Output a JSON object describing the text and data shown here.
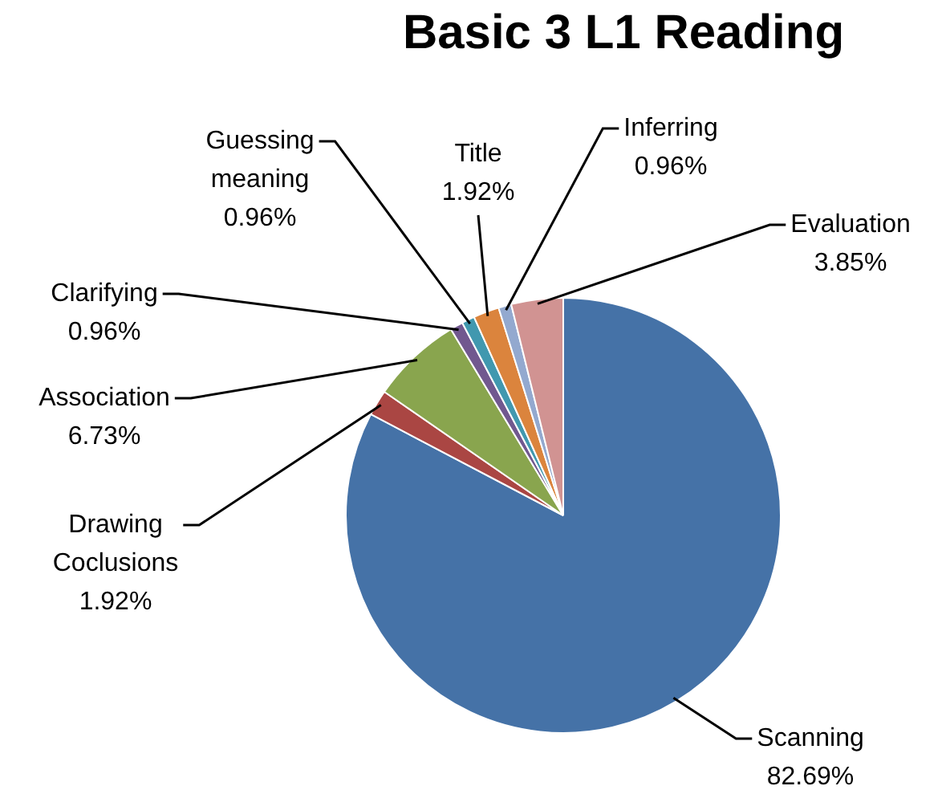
{
  "chart_data": {
    "type": "pie",
    "title": "Basic 3 L1 Reading",
    "categories": [
      "Scanning",
      "Drawing Coclusions",
      "Association",
      "Clarifying",
      "Guessing meaning",
      "Title",
      "Inferring",
      "Evaluation"
    ],
    "values": [
      82.69,
      1.92,
      6.73,
      0.96,
      0.96,
      1.92,
      0.96,
      3.85
    ],
    "value_labels": [
      "82.69%",
      "1.92%",
      "6.73%",
      "0.96%",
      "0.96%",
      "1.92%",
      "0.96%",
      "3.85%"
    ],
    "colors": [
      "#4572a7",
      "#aa4643",
      "#89a54e",
      "#71588f",
      "#4198af",
      "#db843d",
      "#93a9cf",
      "#d19392"
    ],
    "legend": false
  }
}
